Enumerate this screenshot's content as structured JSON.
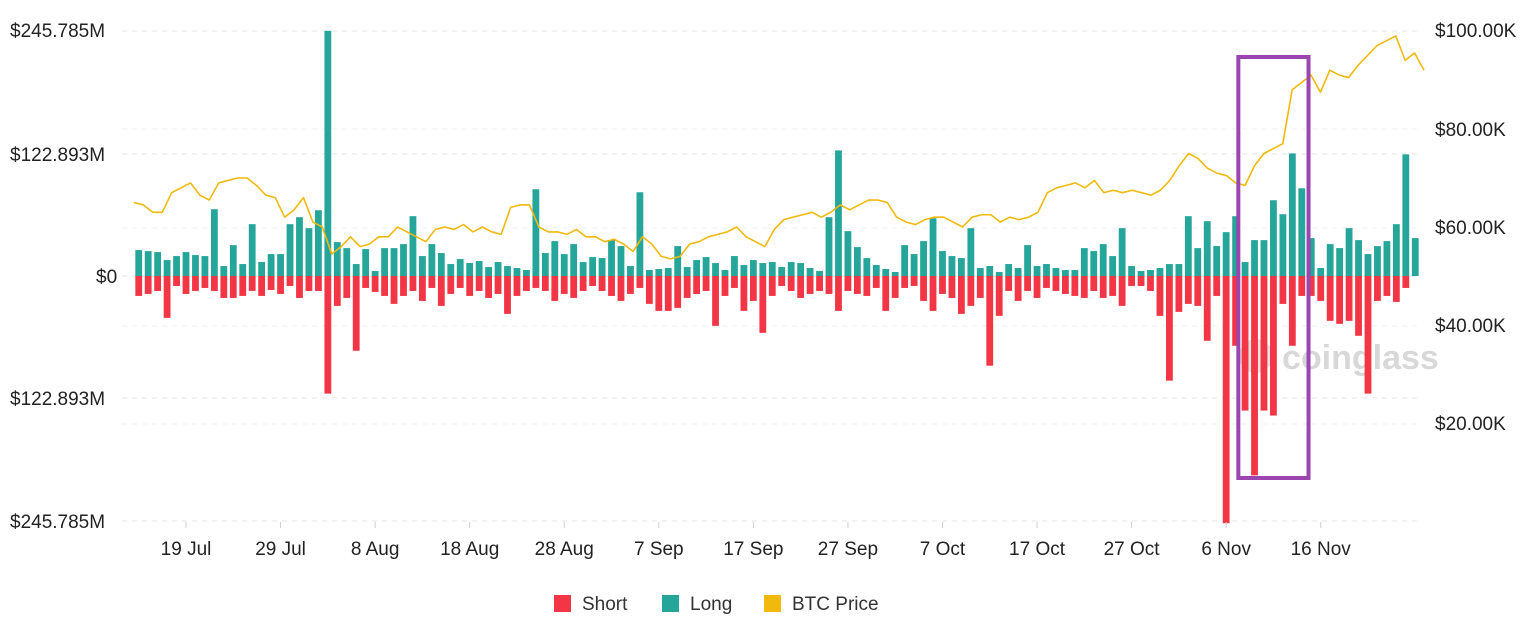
{
  "chart_data": {
    "type": "bar",
    "title": "",
    "y_left_ticks": [
      "$245.785M",
      "$122.893M",
      "$0",
      "$122.893M",
      "$245.785M"
    ],
    "y_left_range": [
      -245.785,
      245.785
    ],
    "y_left_unit": "$M",
    "y_right_ticks": [
      "$100.00K",
      "$80.00K",
      "$60.00K",
      "$40.00K",
      "$20.00K"
    ],
    "y_right_range": [
      0,
      100000
    ],
    "x_ticks": [
      "19 Jul",
      "29 Jul",
      "8 Aug",
      "18 Aug",
      "28 Aug",
      "7 Sep",
      "17 Sep",
      "27 Sep",
      "7 Oct",
      "17 Oct",
      "27 Oct",
      "6 Nov",
      "16 Nov"
    ],
    "x_tick_positions": [
      5,
      15,
      25,
      35,
      45,
      55,
      65,
      75,
      85,
      95,
      105,
      115,
      125
    ],
    "grid": true,
    "legend_position": "bottom-center",
    "colors": {
      "short": "#f23645",
      "long": "#26a69a",
      "price": "#f0b90b",
      "highlight": "#9b45b0"
    },
    "watermark": "coinglass",
    "series": [
      {
        "name": "Long",
        "values": [
          26,
          25,
          24,
          16,
          20,
          24,
          21,
          20,
          67,
          10,
          31,
          12,
          52,
          14,
          22,
          22,
          52,
          59,
          48,
          66,
          246,
          34,
          28,
          12,
          27,
          5,
          28,
          28,
          32,
          60,
          20,
          32,
          23,
          12,
          17,
          13,
          15,
          9,
          14,
          10,
          8,
          6,
          87,
          23,
          35,
          22,
          32,
          14,
          19,
          18,
          36,
          30,
          10,
          84,
          6,
          7,
          8,
          30,
          9,
          16,
          19,
          13,
          6,
          20,
          11,
          16,
          13,
          14,
          9,
          14,
          13,
          8,
          5,
          59,
          126,
          45,
          29,
          18,
          11,
          7,
          4,
          31,
          22,
          35,
          58,
          25,
          20,
          18,
          48,
          8,
          10,
          4,
          12,
          8,
          31,
          10,
          12,
          8,
          6,
          6,
          28,
          25,
          32,
          20,
          48,
          10,
          5,
          6,
          8,
          12,
          12,
          60,
          28,
          55,
          30,
          44,
          60,
          14,
          36,
          36,
          76,
          62,
          123,
          88,
          38,
          8,
          32,
          28,
          48,
          36,
          22,
          30,
          35,
          52,
          122,
          38
        ],
        "color": "#26a69a"
      },
      {
        "name": "Short",
        "values": [
          20,
          18,
          15,
          42,
          10,
          18,
          15,
          12,
          15,
          22,
          22,
          20,
          15,
          20,
          14,
          18,
          10,
          22,
          15,
          15,
          118,
          30,
          22,
          75,
          12,
          16,
          20,
          28,
          20,
          15,
          25,
          12,
          30,
          18,
          12,
          20,
          15,
          22,
          18,
          38,
          20,
          15,
          12,
          15,
          25,
          18,
          22,
          15,
          10,
          15,
          20,
          25,
          18,
          12,
          28,
          35,
          35,
          32,
          22,
          18,
          15,
          50,
          20,
          12,
          35,
          25,
          57,
          20,
          10,
          15,
          22,
          18,
          15,
          18,
          35,
          15,
          18,
          20,
          12,
          35,
          22,
          12,
          10,
          25,
          35,
          18,
          22,
          38,
          30,
          22,
          90,
          40,
          15,
          25,
          15,
          22,
          12,
          15,
          18,
          20,
          22,
          15,
          22,
          20,
          30,
          10,
          10,
          15,
          40,
          105,
          36,
          28,
          30,
          65,
          20,
          248,
          70,
          135,
          200,
          135,
          140,
          28,
          70,
          20,
          20,
          25,
          45,
          48,
          45,
          60,
          118,
          25,
          20,
          26,
          12,
          0
        ],
        "color": "#f23645"
      },
      {
        "name": "BTC Price",
        "values": [
          65000,
          64500,
          63000,
          63000,
          67000,
          68000,
          69000,
          66500,
          65500,
          69000,
          69500,
          70000,
          70000,
          68500,
          66500,
          66000,
          62000,
          63500,
          66000,
          61000,
          60000,
          54500,
          56000,
          58000,
          56000,
          56500,
          58000,
          58000,
          60000,
          59000,
          58000,
          57000,
          59500,
          60000,
          59500,
          60500,
          59000,
          60000,
          59000,
          58500,
          64000,
          64500,
          64500,
          60000,
          59000,
          59000,
          58500,
          59500,
          58000,
          58000,
          57000,
          57500,
          56500,
          55000,
          58000,
          56500,
          54000,
          53500,
          54000,
          56500,
          57000,
          58000,
          58500,
          59000,
          60000,
          58000,
          57000,
          56000,
          59500,
          61500,
          62000,
          62500,
          63000,
          62000,
          63000,
          64500,
          63500,
          64500,
          65500,
          65500,
          65000,
          62000,
          61000,
          60500,
          61500,
          62000,
          62000,
          61000,
          60000,
          62000,
          62500,
          62500,
          61000,
          62000,
          61500,
          62000,
          63000,
          67000,
          68000,
          68500,
          69000,
          68000,
          69500,
          67000,
          67500,
          67000,
          67500,
          67000,
          66500,
          67500,
          69500,
          72500,
          75000,
          74000,
          72000,
          71000,
          70500,
          69000,
          68500,
          72500,
          75000,
          76000,
          77000,
          88000,
          89500,
          91000,
          87500,
          92000,
          91000,
          90500,
          93000,
          95000,
          97000,
          98000,
          99000,
          94000,
          95500,
          92000
        ]
      }
    ],
    "highlight_box": {
      "from_category": 117,
      "to_category": 123
    }
  },
  "legend": [
    {
      "label": "Short",
      "color": "#f23645"
    },
    {
      "label": "Long",
      "color": "#26a69a"
    },
    {
      "label": "BTC Price",
      "color": "#f0b90b"
    }
  ]
}
